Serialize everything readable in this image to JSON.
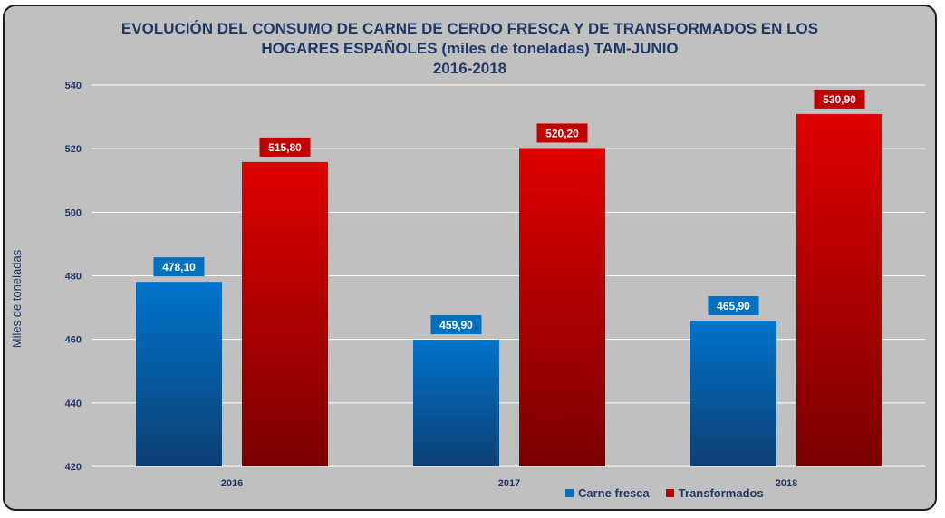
{
  "chart_data": {
    "type": "bar",
    "title": "EVOLUCIÓN DEL CONSUMO DE CARNE DE CERDO FRESCA Y DE TRANSFORMADOS EN LOS HOGARES ESPAÑOLES (miles de toneladas) TAM-JUNIO 2016-2018",
    "title_lines": [
      "EVOLUCIÓN DEL CONSUMO DE CARNE DE CERDO FRESCA Y DE TRANSFORMADOS EN LOS",
      "HOGARES ESPAÑOLES (miles de toneladas) TAM-JUNIO",
      "2016-2018"
    ],
    "xlabel": "",
    "ylabel": "Miles de toneladas",
    "categories": [
      "2016",
      "2017",
      "2018"
    ],
    "ylim": [
      420,
      540
    ],
    "yticks": [
      420,
      440,
      460,
      480,
      500,
      520,
      540
    ],
    "grid": true,
    "legend_position": "bottom-right",
    "series": [
      {
        "name": "Carne fresca",
        "color": "#0070c0",
        "values": [
          478.1,
          459.9,
          465.9
        ],
        "labels": [
          "478,10",
          "459,90",
          "465,90"
        ]
      },
      {
        "name": "Transformados",
        "color": "#c00000",
        "values": [
          515.8,
          520.2,
          530.9
        ],
        "labels": [
          "515,80",
          "520,20",
          "530,90"
        ]
      }
    ]
  }
}
